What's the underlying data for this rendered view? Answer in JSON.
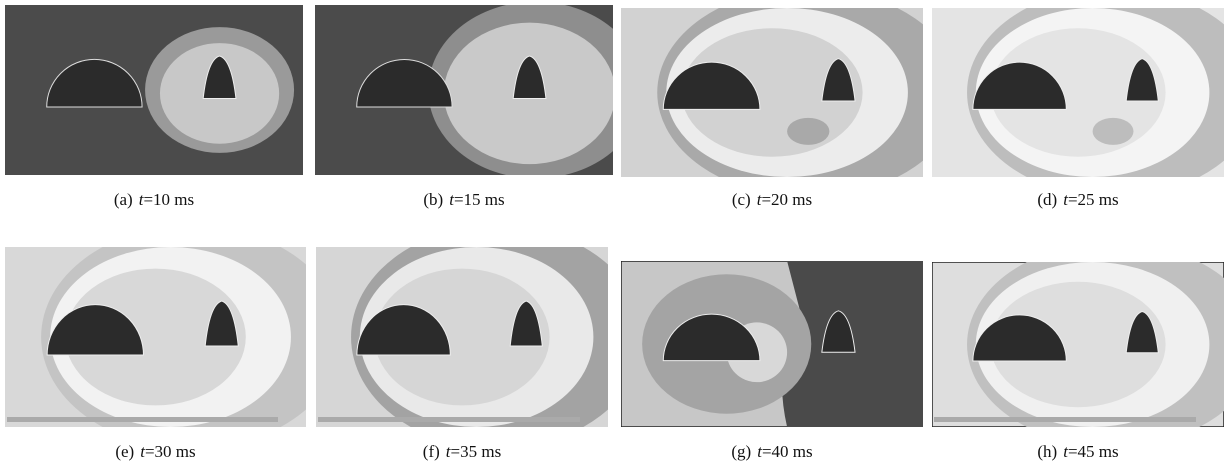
{
  "panels": [
    {
      "label": "(a)",
      "variable": "t",
      "time": "=10 ms"
    },
    {
      "label": "(b)",
      "variable": "t",
      "time": "=15 ms"
    },
    {
      "label": "(c)",
      "variable": "t",
      "time": "=20 ms"
    },
    {
      "label": "(d)",
      "variable": "t",
      "time": "=25 ms"
    },
    {
      "label": "(e)",
      "variable": "t",
      "time": "=30 ms"
    },
    {
      "label": "(f)",
      "variable": "t",
      "time": "=35 ms"
    },
    {
      "label": "(g)",
      "variable": "t",
      "time": "=40 ms"
    },
    {
      "label": "(h)",
      "variable": "t",
      "time": "=45 ms"
    }
  ]
}
